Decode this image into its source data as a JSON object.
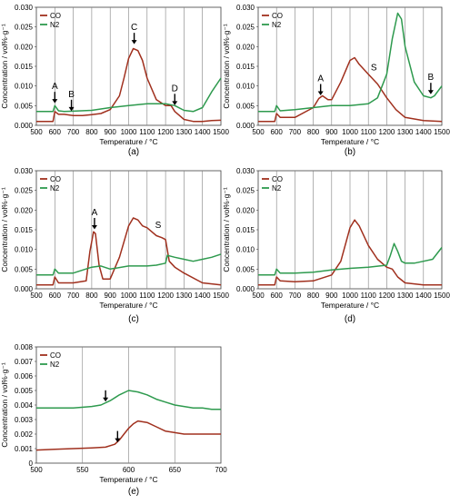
{
  "panels": [
    {
      "id": "a",
      "caption": "(a)",
      "xlabel": "Temperature / °C",
      "ylabel": "Concentration / vol%·g⁻¹",
      "xlim": [
        500,
        1500
      ],
      "ylim": [
        0,
        0.03
      ],
      "xticks": [
        "500",
        "600",
        "700",
        "800",
        "900",
        "1000",
        "1100",
        "1200",
        "1300",
        "1400",
        "1500"
      ],
      "yticks": [
        "0.000",
        "0.005",
        "0.010",
        "0.015",
        "0.020",
        "0.025",
        "0.030"
      ],
      "legend": [
        "CO",
        "N2"
      ],
      "annotations": [
        {
          "label": "A",
          "x": 600,
          "y": 0.0055,
          "arrow": true
        },
        {
          "label": "B",
          "x": 690,
          "y": 0.0035,
          "arrow": true
        },
        {
          "label": "C",
          "x": 1030,
          "y": 0.0205,
          "arrow": true
        },
        {
          "label": "D",
          "x": 1250,
          "y": 0.005,
          "arrow": true
        }
      ]
    },
    {
      "id": "b",
      "caption": "(b)",
      "xlabel": "Temperature / °C",
      "ylabel": "Concentration / vol%·g⁻¹",
      "xlim": [
        500,
        1500
      ],
      "ylim": [
        0,
        0.03
      ],
      "xticks": [
        "500",
        "600",
        "700",
        "800",
        "900",
        "1000",
        "1100",
        "1200",
        "1300",
        "1400",
        "1500"
      ],
      "yticks": [
        "0.000",
        "0.005",
        "0.010",
        "0.015",
        "0.020",
        "0.025",
        "0.030"
      ],
      "legend": [
        "CO",
        "N2"
      ],
      "annotations": [
        {
          "label": "A",
          "x": 840,
          "y": 0.0075,
          "arrow": true
        },
        {
          "label": "S",
          "x": 1130,
          "y": 0.014,
          "arrow": false
        },
        {
          "label": "B",
          "x": 1440,
          "y": 0.0078,
          "arrow": true
        }
      ]
    },
    {
      "id": "c",
      "caption": "(c)",
      "xlabel": "Temperature / °C",
      "ylabel": "Concentration / vol%·g⁻¹",
      "xlim": [
        500,
        1500
      ],
      "ylim": [
        0,
        0.03
      ],
      "xticks": [
        "500",
        "600",
        "700",
        "800",
        "900",
        "1000",
        "1100",
        "1200",
        "1300",
        "1400",
        "1500"
      ],
      "yticks": [
        "0.000",
        "0.005",
        "0.010",
        "0.015",
        "0.020",
        "0.025",
        "0.030"
      ],
      "legend": [
        "CO",
        "N2"
      ],
      "annotations": [
        {
          "label": "A",
          "x": 815,
          "y": 0.015,
          "arrow": true
        },
        {
          "label": "S",
          "x": 1160,
          "y": 0.0155,
          "arrow": false
        }
      ]
    },
    {
      "id": "d",
      "caption": "(d)",
      "xlabel": "Temperature / °C",
      "ylabel": "Concentration / vol%·g⁻¹",
      "xlim": [
        500,
        1500
      ],
      "ylim": [
        0,
        0.03
      ],
      "xticks": [
        "500",
        "600",
        "700",
        "800",
        "900",
        "1000",
        "1100",
        "1200",
        "1300",
        "1400",
        "1500"
      ],
      "yticks": [
        "0.000",
        "0.005",
        "0.010",
        "0.015",
        "0.020",
        "0.025",
        "0.030"
      ],
      "legend": [
        "CO",
        "N2"
      ],
      "annotations": []
    },
    {
      "id": "e",
      "caption": "(e)",
      "xlabel": "Temperature / °C",
      "ylabel": "Concentration / vol%·g⁻¹",
      "xlim": [
        500,
        700
      ],
      "ylim": [
        0,
        0.008
      ],
      "xticks": [
        "500",
        "550",
        "600",
        "650",
        "700"
      ],
      "yticks": [
        "0",
        "0.001",
        "0.002",
        "0.003",
        "0.004",
        "0.005",
        "0.006",
        "0.007",
        "0.008"
      ],
      "legend": [
        "CO",
        "N2"
      ],
      "annotations": [
        {
          "label": "",
          "x": 575,
          "y": 0.0042,
          "arrow": true
        },
        {
          "label": "",
          "x": 588,
          "y": 0.0014,
          "arrow": true
        }
      ]
    }
  ],
  "colors": {
    "CO": "#a0301e",
    "N2": "#2e9a4e",
    "grid": "#808080",
    "axis": "#404040",
    "arrow": "#000000"
  },
  "chart_data": [
    {
      "type": "line",
      "title": "",
      "xlabel": "Temperature / °C",
      "ylabel": "Concentration / vol%·g⁻¹",
      "xlim": [
        500,
        1500
      ],
      "ylim": [
        0,
        0.03
      ],
      "grid": "vertical",
      "legend": "top-left",
      "series": [
        {
          "name": "CO",
          "x": [
            500,
            590,
            600,
            620,
            650,
            700,
            750,
            800,
            850,
            900,
            950,
            975,
            1000,
            1025,
            1050,
            1075,
            1100,
            1150,
            1200,
            1230,
            1250,
            1300,
            1350,
            1400,
            1450,
            1500
          ],
          "y": [
            0.001,
            0.001,
            0.0035,
            0.0028,
            0.0028,
            0.0025,
            0.0025,
            0.0027,
            0.003,
            0.004,
            0.0075,
            0.012,
            0.017,
            0.0195,
            0.019,
            0.0165,
            0.012,
            0.0065,
            0.005,
            0.005,
            0.0035,
            0.0015,
            0.001,
            0.001,
            0.0012,
            0.0013
          ]
        },
        {
          "name": "N2",
          "x": [
            500,
            590,
            600,
            620,
            650,
            700,
            800,
            900,
            1000,
            1100,
            1200,
            1250,
            1300,
            1350,
            1400,
            1450,
            1500
          ],
          "y": [
            0.0035,
            0.0035,
            0.005,
            0.0037,
            0.0035,
            0.0036,
            0.0038,
            0.0045,
            0.005,
            0.0055,
            0.0055,
            0.005,
            0.0038,
            0.0035,
            0.0045,
            0.0085,
            0.012
          ]
        }
      ]
    },
    {
      "type": "line",
      "title": "",
      "xlabel": "Temperature / °C",
      "ylabel": "Concentration / vol%·g⁻¹",
      "xlim": [
        500,
        1500
      ],
      "ylim": [
        0,
        0.03
      ],
      "grid": "vertical",
      "legend": "top-left",
      "series": [
        {
          "name": "CO",
          "x": [
            500,
            590,
            600,
            620,
            700,
            800,
            830,
            850,
            880,
            900,
            950,
            1000,
            1025,
            1050,
            1100,
            1150,
            1200,
            1250,
            1300,
            1400,
            1500
          ],
          "y": [
            0.001,
            0.001,
            0.003,
            0.002,
            0.002,
            0.0045,
            0.0068,
            0.0075,
            0.0065,
            0.0065,
            0.011,
            0.0165,
            0.0172,
            0.0155,
            0.013,
            0.0105,
            0.007,
            0.004,
            0.002,
            0.0012,
            0.001
          ]
        },
        {
          "name": "N2",
          "x": [
            500,
            590,
            600,
            620,
            700,
            800,
            900,
            1000,
            1100,
            1150,
            1200,
            1230,
            1260,
            1280,
            1300,
            1350,
            1400,
            1440,
            1460,
            1500
          ],
          "y": [
            0.0035,
            0.0035,
            0.005,
            0.0037,
            0.004,
            0.0045,
            0.005,
            0.005,
            0.0055,
            0.007,
            0.013,
            0.022,
            0.0285,
            0.027,
            0.02,
            0.011,
            0.0075,
            0.007,
            0.0075,
            0.01
          ]
        }
      ]
    },
    {
      "type": "line",
      "title": "",
      "xlabel": "Temperature / °C",
      "ylabel": "Concentration / vol%·g⁻¹",
      "xlim": [
        500,
        1500
      ],
      "ylim": [
        0,
        0.03
      ],
      "grid": "vertical",
      "legend": "top-left",
      "series": [
        {
          "name": "CO",
          "x": [
            500,
            590,
            600,
            620,
            700,
            770,
            790,
            810,
            820,
            840,
            860,
            900,
            950,
            1000,
            1025,
            1050,
            1075,
            1100,
            1150,
            1180,
            1200,
            1220,
            1250,
            1300,
            1400,
            1500
          ],
          "y": [
            0.001,
            0.001,
            0.003,
            0.0015,
            0.0015,
            0.002,
            0.0095,
            0.0145,
            0.014,
            0.006,
            0.0025,
            0.0025,
            0.008,
            0.016,
            0.018,
            0.0175,
            0.016,
            0.0155,
            0.0135,
            0.013,
            0.0125,
            0.007,
            0.0055,
            0.004,
            0.0015,
            0.001
          ]
        },
        {
          "name": "N2",
          "x": [
            500,
            590,
            600,
            620,
            700,
            800,
            850,
            900,
            1000,
            1100,
            1150,
            1200,
            1210,
            1250,
            1300,
            1350,
            1400,
            1450,
            1500
          ],
          "y": [
            0.0035,
            0.0035,
            0.005,
            0.004,
            0.004,
            0.0055,
            0.0058,
            0.005,
            0.0058,
            0.0058,
            0.006,
            0.0065,
            0.0085,
            0.008,
            0.0075,
            0.007,
            0.0075,
            0.008,
            0.0088
          ]
        }
      ]
    },
    {
      "type": "line",
      "title": "",
      "xlabel": "Temperature / °C",
      "ylabel": "Concentration / vol%·g⁻¹",
      "xlim": [
        500,
        1500
      ],
      "ylim": [
        0,
        0.03
      ],
      "grid": "vertical",
      "legend": "top-left",
      "series": [
        {
          "name": "CO",
          "x": [
            500,
            590,
            600,
            620,
            700,
            800,
            900,
            950,
            1000,
            1025,
            1050,
            1100,
            1150,
            1200,
            1230,
            1260,
            1300,
            1400,
            1500
          ],
          "y": [
            0.001,
            0.001,
            0.003,
            0.002,
            0.0018,
            0.002,
            0.0035,
            0.007,
            0.0155,
            0.0175,
            0.016,
            0.011,
            0.0075,
            0.0055,
            0.005,
            0.003,
            0.0015,
            0.001,
            0.001
          ]
        },
        {
          "name": "N2",
          "x": [
            500,
            590,
            600,
            620,
            700,
            800,
            900,
            1000,
            1100,
            1200,
            1220,
            1240,
            1260,
            1280,
            1300,
            1350,
            1400,
            1450,
            1500
          ],
          "y": [
            0.0035,
            0.0035,
            0.005,
            0.004,
            0.004,
            0.0042,
            0.0048,
            0.0052,
            0.0055,
            0.006,
            0.0085,
            0.0115,
            0.0095,
            0.007,
            0.0065,
            0.0065,
            0.007,
            0.0075,
            0.0105
          ]
        }
      ]
    },
    {
      "type": "line",
      "title": "",
      "xlabel": "Temperature / °C",
      "ylabel": "Concentration / vol%·g⁻¹",
      "xlim": [
        500,
        700
      ],
      "ylim": [
        0,
        0.008
      ],
      "grid": "vertical",
      "legend": "top-left",
      "series": [
        {
          "name": "CO",
          "x": [
            500,
            520,
            540,
            560,
            575,
            585,
            590,
            595,
            600,
            605,
            610,
            620,
            630,
            640,
            650,
            660,
            680,
            700
          ],
          "y": [
            0.0009,
            0.00095,
            0.001,
            0.00105,
            0.0011,
            0.0013,
            0.0016,
            0.002,
            0.0024,
            0.0027,
            0.0029,
            0.0028,
            0.0025,
            0.0022,
            0.0021,
            0.002,
            0.002,
            0.002
          ]
        },
        {
          "name": "N2",
          "x": [
            500,
            520,
            540,
            560,
            570,
            580,
            590,
            600,
            610,
            620,
            630,
            640,
            650,
            660,
            670,
            680,
            690,
            700
          ],
          "y": [
            0.0038,
            0.0038,
            0.0038,
            0.0039,
            0.004,
            0.0043,
            0.0047,
            0.005,
            0.0049,
            0.0047,
            0.0044,
            0.0042,
            0.004,
            0.0039,
            0.0038,
            0.0038,
            0.0037,
            0.0037
          ]
        }
      ]
    }
  ]
}
